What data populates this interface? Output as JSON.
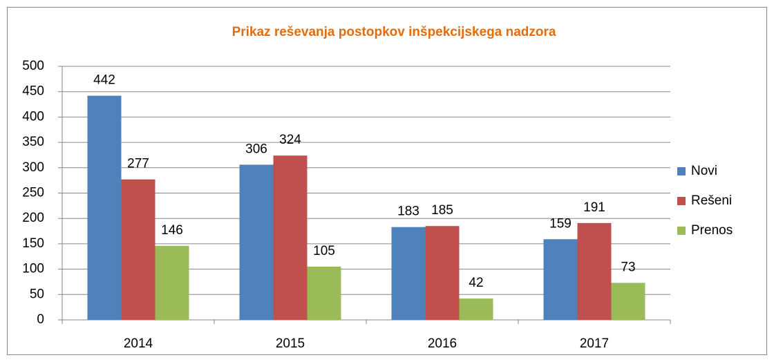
{
  "chart_data": {
    "type": "bar",
    "title": "Prikaz reševanja postopkov inšpekcijskega nadzora",
    "categories": [
      "2014",
      "2015",
      "2016",
      "2017"
    ],
    "series": [
      {
        "name": "Novi",
        "color": "#4f81bd",
        "values": [
          442,
          306,
          183,
          159
        ]
      },
      {
        "name": "Rešeni",
        "color": "#c0504d",
        "values": [
          277,
          324,
          185,
          191
        ]
      },
      {
        "name": "Prenos",
        "color": "#9bbb59",
        "values": [
          146,
          105,
          42,
          73
        ]
      }
    ],
    "ylim": [
      0,
      500
    ],
    "yticks": [
      0,
      50,
      100,
      150,
      200,
      250,
      300,
      350,
      400,
      450,
      500
    ],
    "grid": true,
    "legend": "right"
  }
}
